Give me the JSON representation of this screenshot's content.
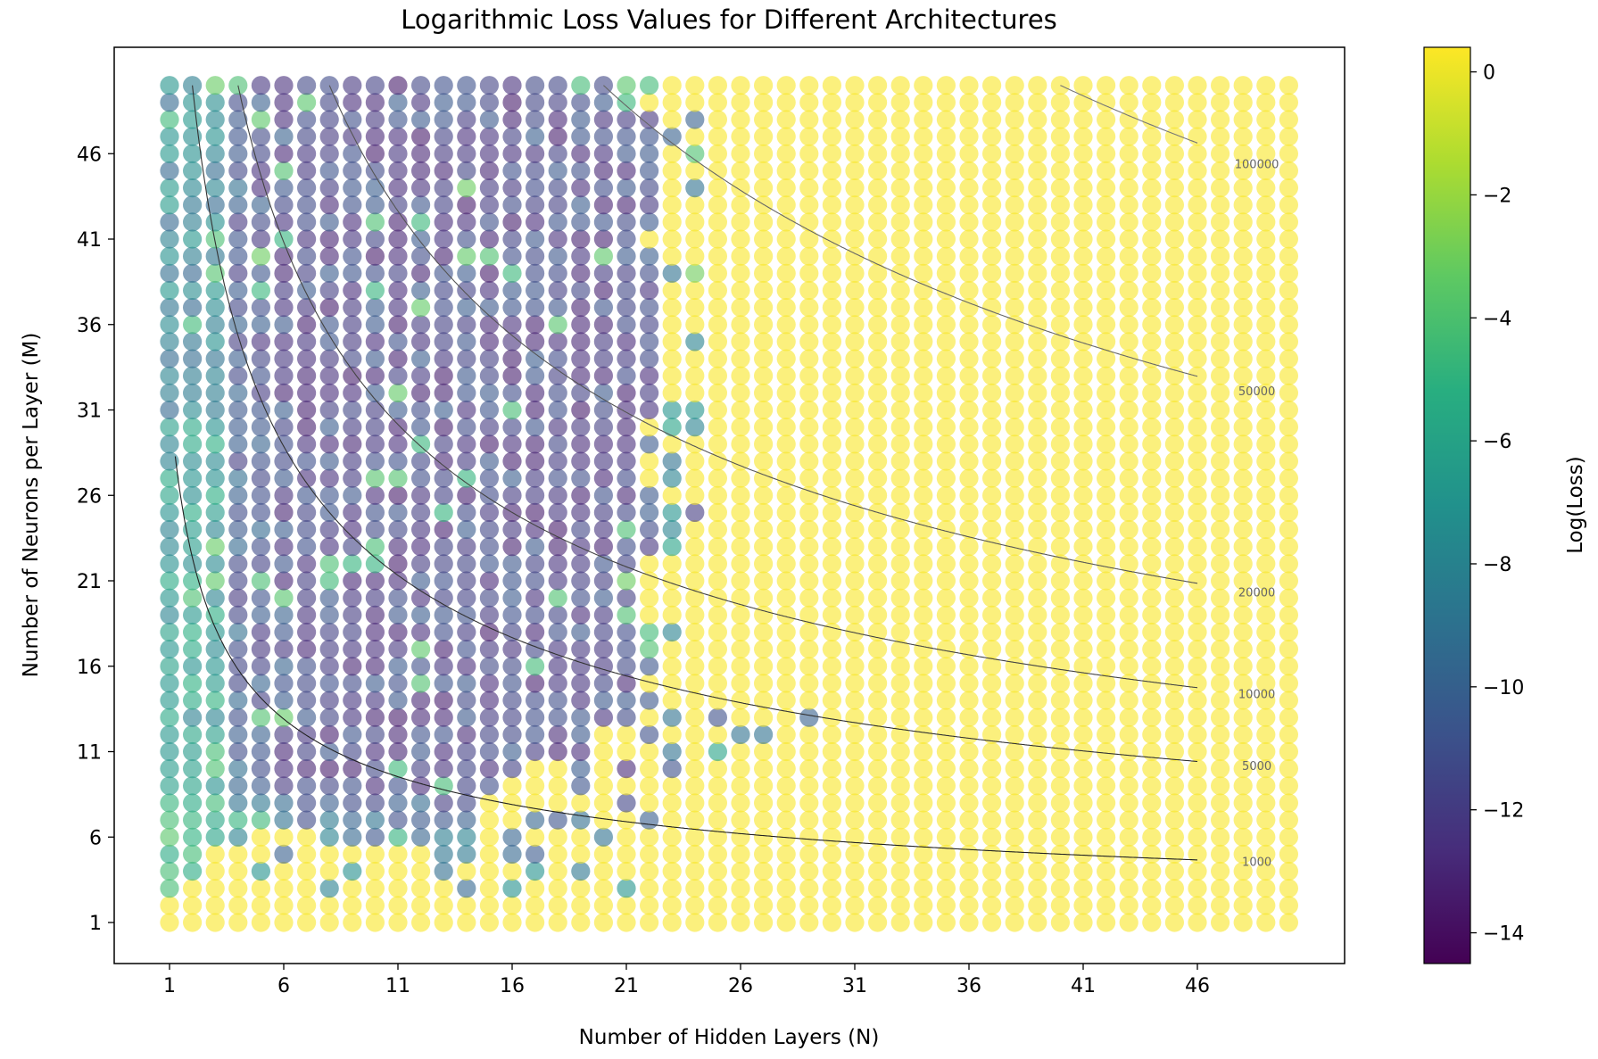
{
  "chart_data": {
    "type": "scatter",
    "title": "Logarithmic Loss Values for Different Architectures",
    "xlabel": "Number of Hidden Layers (N)",
    "ylabel": "Number of Neurons per Layer (M)",
    "colorbar_label": "Log(Loss)",
    "x_range": [
      1,
      50
    ],
    "y_range": [
      1,
      50
    ],
    "xticks": [
      "1",
      "6",
      "11",
      "16",
      "21",
      "26",
      "31",
      "36",
      "41",
      "46"
    ],
    "yticks": [
      "1",
      "6",
      "11",
      "16",
      "21",
      "26",
      "31",
      "36",
      "41",
      "46"
    ],
    "colorbar_ticks": [
      "0",
      "−2",
      "−4",
      "−6",
      "−8",
      "−10",
      "−12",
      "−14"
    ],
    "colorbar_range": [
      -14.5,
      0.4
    ],
    "colormap": "viridis",
    "point_alpha": 0.6,
    "grid": false,
    "saturated_log_loss": 0.3,
    "diverged_region_note": "yellow region (Log(Loss) ≈ 0) for large N",
    "contour_levels": [
      {
        "label": "1000",
        "value": 1000
      },
      {
        "label": "5000",
        "value": 5000
      },
      {
        "label": "10000",
        "value": 10000
      },
      {
        "label": "20000",
        "value": 20000
      },
      {
        "label": "50000",
        "value": 50000
      },
      {
        "label": "100000",
        "value": 100000
      }
    ],
    "converged_extras": [
      {
        "x": 23,
        "y": 47,
        "v": -10
      },
      {
        "x": 24,
        "y": 48,
        "v": -10
      },
      {
        "x": 24,
        "y": 46,
        "v": -4
      },
      {
        "x": 24,
        "y": 44,
        "v": -9
      },
      {
        "x": 23,
        "y": 39,
        "v": -9
      },
      {
        "x": 24,
        "y": 39,
        "v": -3
      },
      {
        "x": 24,
        "y": 35,
        "v": -8
      },
      {
        "x": 23,
        "y": 31,
        "v": -7
      },
      {
        "x": 24,
        "y": 31,
        "v": -7
      },
      {
        "x": 23,
        "y": 30,
        "v": -6
      },
      {
        "x": 24,
        "y": 30,
        "v": -8
      },
      {
        "x": 23,
        "y": 28,
        "v": -9
      },
      {
        "x": 23,
        "y": 27,
        "v": -8
      },
      {
        "x": 23,
        "y": 25,
        "v": -7
      },
      {
        "x": 24,
        "y": 25,
        "v": -12
      },
      {
        "x": 23,
        "y": 24,
        "v": -8
      },
      {
        "x": 23,
        "y": 23,
        "v": -6
      },
      {
        "x": 23,
        "y": 18,
        "v": -8
      },
      {
        "x": 23,
        "y": 13,
        "v": -9
      },
      {
        "x": 23,
        "y": 11,
        "v": -9
      },
      {
        "x": 23,
        "y": 10,
        "v": -11
      },
      {
        "x": 25,
        "y": 13,
        "v": -11
      },
      {
        "x": 25,
        "y": 11,
        "v": -6
      },
      {
        "x": 26,
        "y": 12,
        "v": -9
      },
      {
        "x": 27,
        "y": 12,
        "v": -9
      },
      {
        "x": 29,
        "y": 13,
        "v": -10
      }
    ]
  }
}
